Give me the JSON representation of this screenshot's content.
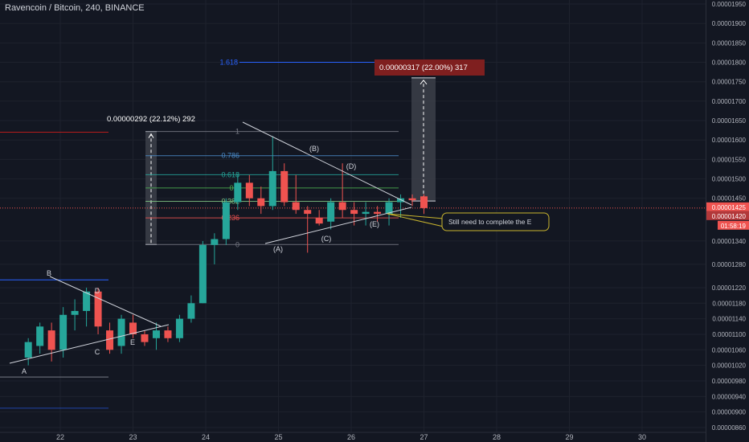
{
  "header": {
    "title": "Ravencoin / Bitcoin, 240, BINANCE"
  },
  "colors": {
    "background": "#131722",
    "up": "#26a69a",
    "down": "#ef5350",
    "grid": "#1e222d",
    "text": "#b2b5be",
    "price_line": "#ef5350",
    "fib_blue": "#2962ff"
  },
  "price_axis": {
    "min": 8.6e-06,
    "max": 1.95e-05,
    "tick_labels": [
      "0.00001950",
      "0.00001900",
      "0.00001850",
      "0.00001800",
      "0.00001750",
      "0.00001700",
      "0.00001650",
      "0.00001600",
      "0.00001550",
      "0.00001500",
      "0.00001450",
      "0.00001340",
      "0.00001280",
      "0.00001220",
      "0.00001180",
      "0.00001140",
      "0.00001100",
      "0.00001060",
      "0.00001020",
      "0.00000980",
      "0.00000940",
      "0.00000900",
      "0.00000860"
    ],
    "current_price_label": "0.00001425",
    "current_price_label_2": "0.00001420",
    "countdown_label": "01:58:19"
  },
  "time_axis": {
    "labels": [
      "22",
      "23",
      "24",
      "25",
      "26",
      "27",
      "28",
      "29",
      "30"
    ]
  },
  "annotations": {
    "first_measure_label": "0.00000292 (22.12%) 292",
    "second_measure_label": "0.00000317 (22.00%) 317",
    "callout_text": "Still need to complete the E",
    "fib_1618": "1.618",
    "fib_1": "1",
    "fib_0786": "0.786",
    "fib_0618": "0.618",
    "fib_05": "0.5",
    "fib_0382": "0.382",
    "fib_0236": "0.236",
    "fib_0": "0",
    "wave_A_upper": "(A)",
    "wave_B_upper": "(B)",
    "wave_C_upper": "(C)",
    "wave_D_upper": "(D)",
    "wave_E_upper": "(E)",
    "wave_A_lower": "A",
    "wave_B_lower": "B",
    "wave_C_lower": "C",
    "wave_D_lower": "D",
    "wave_E_lower": "E"
  },
  "chart_data": {
    "type": "candlestick",
    "title": "Ravencoin / Bitcoin, 240, BINANCE",
    "x_unit": "day",
    "x_tick_labels": [
      "22",
      "23",
      "24",
      "25",
      "26",
      "27",
      "28",
      "29",
      "30"
    ],
    "ylim": [
      8.6e-06,
      1.95e-05
    ],
    "candles": [
      {
        "t": 21.56,
        "o": 1.04e-05,
        "h": 1.09e-05,
        "l": 1.02e-05,
        "c": 1.08e-05
      },
      {
        "t": 21.72,
        "o": 1.07e-05,
        "h": 1.13e-05,
        "l": 1.05e-05,
        "c": 1.12e-05
      },
      {
        "t": 21.88,
        "o": 1.11e-05,
        "h": 1.13e-05,
        "l": 1.03e-05,
        "c": 1.06e-05
      },
      {
        "t": 22.04,
        "o": 1.06e-05,
        "h": 1.17e-05,
        "l": 1.04e-05,
        "c": 1.15e-05
      },
      {
        "t": 22.2,
        "o": 1.15e-05,
        "h": 1.19e-05,
        "l": 1.11e-05,
        "c": 1.16e-05
      },
      {
        "t": 22.36,
        "o": 1.16e-05,
        "h": 1.22e-05,
        "l": 1.12e-05,
        "c": 1.21e-05
      },
      {
        "t": 22.52,
        "o": 1.21e-05,
        "h": 1.22e-05,
        "l": 1.1e-05,
        "c": 1.12e-05
      },
      {
        "t": 22.68,
        "o": 1.11e-05,
        "h": 1.13e-05,
        "l": 1.05e-05,
        "c": 1.06e-05
      },
      {
        "t": 22.84,
        "o": 1.07e-05,
        "h": 1.15e-05,
        "l": 1.05e-05,
        "c": 1.14e-05
      },
      {
        "t": 23.0,
        "o": 1.13e-05,
        "h": 1.15e-05,
        "l": 1.09e-05,
        "c": 1.1e-05
      },
      {
        "t": 23.16,
        "o": 1.1e-05,
        "h": 1.11e-05,
        "l": 1.07e-05,
        "c": 1.08e-05
      },
      {
        "t": 23.32,
        "o": 1.09e-05,
        "h": 1.13e-05,
        "l": 1.06e-05,
        "c": 1.11e-05
      },
      {
        "t": 23.48,
        "o": 1.11e-05,
        "h": 1.12e-05,
        "l": 1.08e-05,
        "c": 1.09e-05
      },
      {
        "t": 23.64,
        "o": 1.09e-05,
        "h": 1.15e-05,
        "l": 1.08e-05,
        "c": 1.14e-05
      },
      {
        "t": 23.8,
        "o": 1.14e-05,
        "h": 1.2e-05,
        "l": 1.13e-05,
        "c": 1.18e-05
      },
      {
        "t": 23.96,
        "o": 1.18e-05,
        "h": 1.34e-05,
        "l": 1.18e-05,
        "c": 1.33e-05
      },
      {
        "t": 24.12,
        "o": 1.33e-05,
        "h": 1.36e-05,
        "l": 1.28e-05,
        "c": 1.345e-05
      },
      {
        "t": 24.28,
        "o": 1.345e-05,
        "h": 1.45e-05,
        "l": 1.33e-05,
        "c": 1.44e-05
      },
      {
        "t": 24.44,
        "o": 1.44e-05,
        "h": 1.51e-05,
        "l": 1.42e-05,
        "c": 1.49e-05
      },
      {
        "t": 24.6,
        "o": 1.49e-05,
        "h": 1.51e-05,
        "l": 1.43e-05,
        "c": 1.45e-05
      },
      {
        "t": 24.76,
        "o": 1.45e-05,
        "h": 1.48e-05,
        "l": 1.41e-05,
        "c": 1.43e-05
      },
      {
        "t": 24.92,
        "o": 1.43e-05,
        "h": 1.61e-05,
        "l": 1.42e-05,
        "c": 1.52e-05
      },
      {
        "t": 25.08,
        "o": 1.52e-05,
        "h": 1.54e-05,
        "l": 1.43e-05,
        "c": 1.44e-05
      },
      {
        "t": 25.24,
        "o": 1.44e-05,
        "h": 1.51e-05,
        "l": 1.41e-05,
        "c": 1.42e-05
      },
      {
        "t": 25.4,
        "o": 1.42e-05,
        "h": 1.43e-05,
        "l": 1.31e-05,
        "c": 1.41e-05
      },
      {
        "t": 25.56,
        "o": 1.4e-05,
        "h": 1.42e-05,
        "l": 1.38e-05,
        "c": 1.385e-05
      },
      {
        "t": 25.72,
        "o": 1.39e-05,
        "h": 1.45e-05,
        "l": 1.37e-05,
        "c": 1.44e-05
      },
      {
        "t": 25.88,
        "o": 1.44e-05,
        "h": 1.54e-05,
        "l": 1.4e-05,
        "c": 1.42e-05
      },
      {
        "t": 26.04,
        "o": 1.42e-05,
        "h": 1.44e-05,
        "l": 1.38e-05,
        "c": 1.41e-05
      },
      {
        "t": 26.2,
        "o": 1.41e-05,
        "h": 1.44e-05,
        "l": 1.38e-05,
        "c": 1.415e-05
      },
      {
        "t": 26.36,
        "o": 1.415e-05,
        "h": 1.43e-05,
        "l": 1.39e-05,
        "c": 1.41e-05
      },
      {
        "t": 26.52,
        "o": 1.41e-05,
        "h": 1.45e-05,
        "l": 1.38e-05,
        "c": 1.44e-05
      },
      {
        "t": 26.68,
        "o": 1.44e-05,
        "h": 1.46e-05,
        "l": 1.4e-05,
        "c": 1.45e-05
      },
      {
        "t": 26.84,
        "o": 1.45e-05,
        "h": 1.46e-05,
        "l": 1.43e-05,
        "c": 1.445e-05
      },
      {
        "t": 27.0,
        "o": 1.455e-05,
        "h": 1.46e-05,
        "l": 1.41e-05,
        "c": 1.425e-05
      }
    ]
  }
}
